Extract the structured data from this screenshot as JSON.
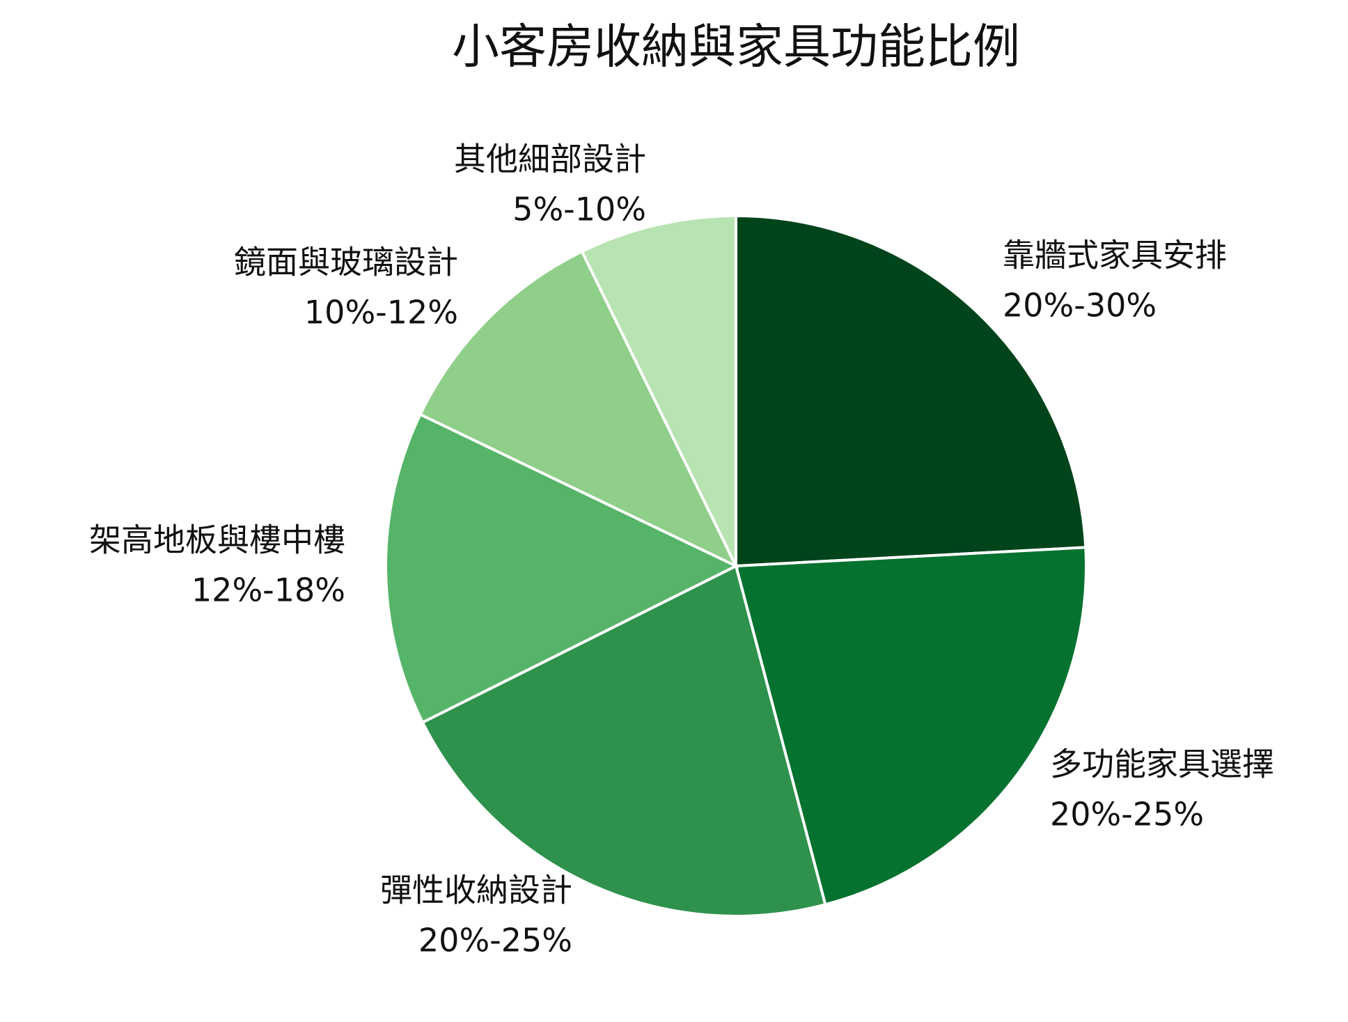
{
  "chart_data": {
    "type": "pie",
    "title": "小客房收納與家具功能比例",
    "categories": [
      "靠牆式家具安排",
      "多功能家具選擇",
      "彈性收納設計",
      "架高地板與樓中樓",
      "鏡面與玻璃設計",
      "其他細部設計"
    ],
    "values": [
      25,
      22.5,
      22.5,
      15,
      11,
      7.5
    ],
    "value_labels": [
      "20%-30%",
      "20%-25%",
      "20%-25%",
      "12%-18%",
      "10%-12%",
      "5%-10%"
    ],
    "colors": [
      "#00441b",
      "#067230",
      "#2e924d",
      "#56b468",
      "#8fcf89",
      "#b8e3b2"
    ]
  }
}
